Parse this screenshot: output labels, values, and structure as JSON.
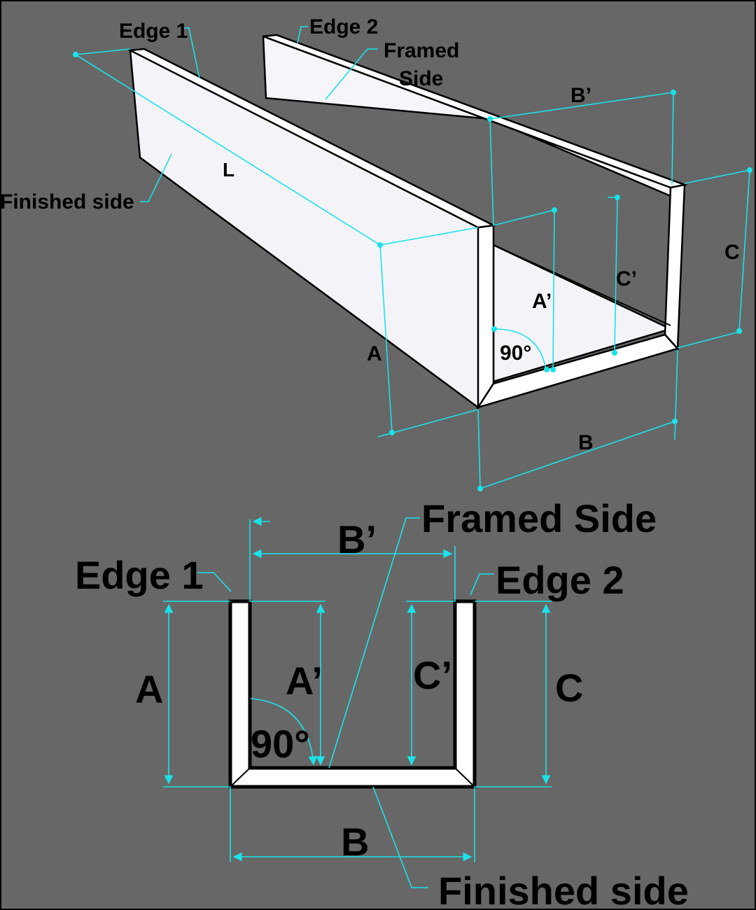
{
  "colors": {
    "background": "#676767",
    "dimension_line": "#19e3ea",
    "panel": "#f4f4f8",
    "text": "#000000"
  },
  "isometric_view": {
    "edge1": "Edge 1",
    "edge2": "Edge 2",
    "framed_side_line1": "Framed",
    "framed_side_line2": "Side",
    "finished_side": "Finished side",
    "length": "L",
    "dim_a": "A",
    "dim_a_prime": "A’",
    "dim_b": "B",
    "dim_b_prime": "B’",
    "dim_c": "C",
    "dim_c_prime": "C’",
    "angle": "90°"
  },
  "section_view": {
    "edge1": "Edge 1",
    "edge2": "Edge 2",
    "framed_side": "Framed Side",
    "finished_side": "Finished side",
    "dim_a": "A",
    "dim_a_prime": "A’",
    "dim_b": "B",
    "dim_b_prime": "B’",
    "dim_c": "C",
    "dim_c_prime": "C’",
    "angle": "90°"
  }
}
